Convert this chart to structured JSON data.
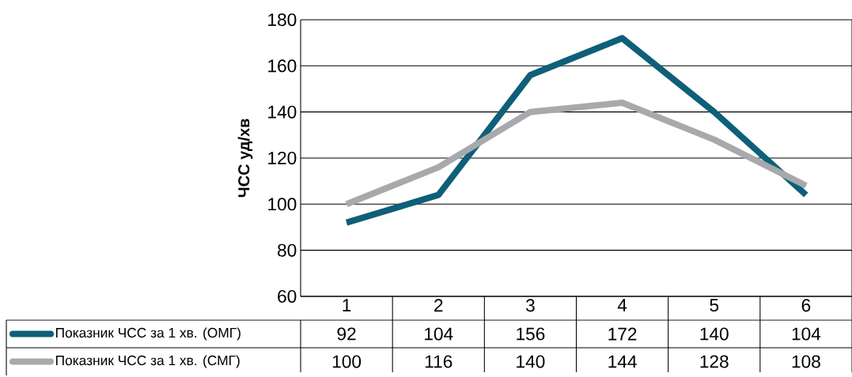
{
  "chart_data": {
    "type": "line",
    "ylabel": "ЧСС уд/хв",
    "categories": [
      "1",
      "2",
      "3",
      "4",
      "5",
      "6"
    ],
    "series": [
      {
        "name": "Показник ЧСС за 1 хв. (ОМГ)",
        "color": "#0e5f78",
        "values": [
          92,
          104,
          156,
          172,
          140,
          104
        ]
      },
      {
        "name": "Показник ЧСС за 1 хв. (СМГ)",
        "color": "#a7a9ac",
        "values": [
          100,
          116,
          140,
          144,
          128,
          108
        ]
      }
    ],
    "ylim": [
      60,
      180
    ],
    "yticks": [
      60,
      80,
      100,
      120,
      140,
      160,
      180
    ],
    "grid": "y",
    "legend": "bottom",
    "data_labels": true,
    "marker": "none",
    "line_style": "solid"
  }
}
